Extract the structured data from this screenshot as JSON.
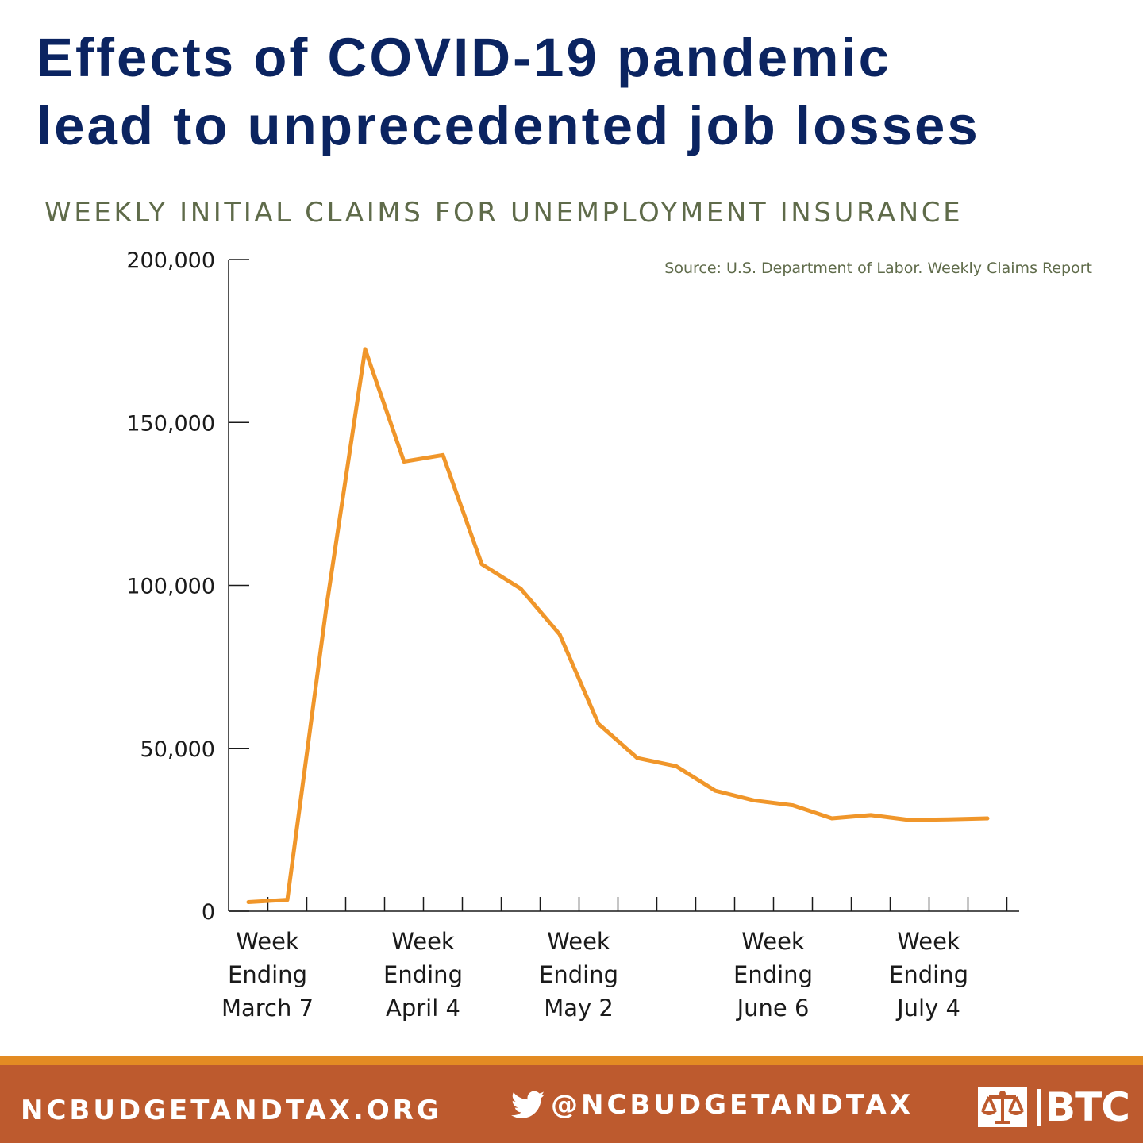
{
  "header": {
    "title_line1": "Effects of COVID-19 pandemic",
    "title_line2": "lead to unprecedented job losses"
  },
  "chart_data": {
    "type": "line",
    "title": "WEEKLY INITIAL CLAIMS FOR UNEMPLOYMENT INSURANCE",
    "source": "Source: U.S. Department of Labor. Weekly Claims Report",
    "xlabel": "",
    "ylabel": "",
    "ylim": [
      0,
      200000
    ],
    "yticks": [
      0,
      50000,
      100000,
      150000,
      200000
    ],
    "ytick_labels": [
      "0",
      "50,000",
      "100,000",
      "150,000",
      "200,000"
    ],
    "grid": false,
    "x_labels": [
      {
        "index": 0,
        "lines": [
          "Week",
          "Ending",
          "March 7"
        ]
      },
      {
        "index": 4,
        "lines": [
          "Week",
          "Ending",
          "April 4"
        ]
      },
      {
        "index": 8,
        "lines": [
          "Week",
          "Ending",
          "May 2"
        ]
      },
      {
        "index": 13,
        "lines": [
          "Week",
          "Ending",
          "June 6"
        ]
      },
      {
        "index": 17,
        "lines": [
          "Week",
          "Ending",
          "July 4"
        ]
      }
    ],
    "series": [
      {
        "color": "#f0962a",
        "values": [
          2800,
          3500,
          93000,
          172500,
          138000,
          140000,
          106500,
          99000,
          85000,
          57500,
          47000,
          44500,
          37000,
          34000,
          32500,
          28500,
          29500,
          28000,
          28200,
          28500
        ]
      }
    ]
  },
  "footer": {
    "website": "NCBUDGETANDTAX.ORG",
    "handle": "@NCBUDGETANDTAX",
    "logo_text": "BTC",
    "icons": [
      "twitter-bird-icon",
      "btc-scales-logo"
    ],
    "colors": {
      "band": "#bd5a2e",
      "stripe": "#e38b23"
    }
  }
}
